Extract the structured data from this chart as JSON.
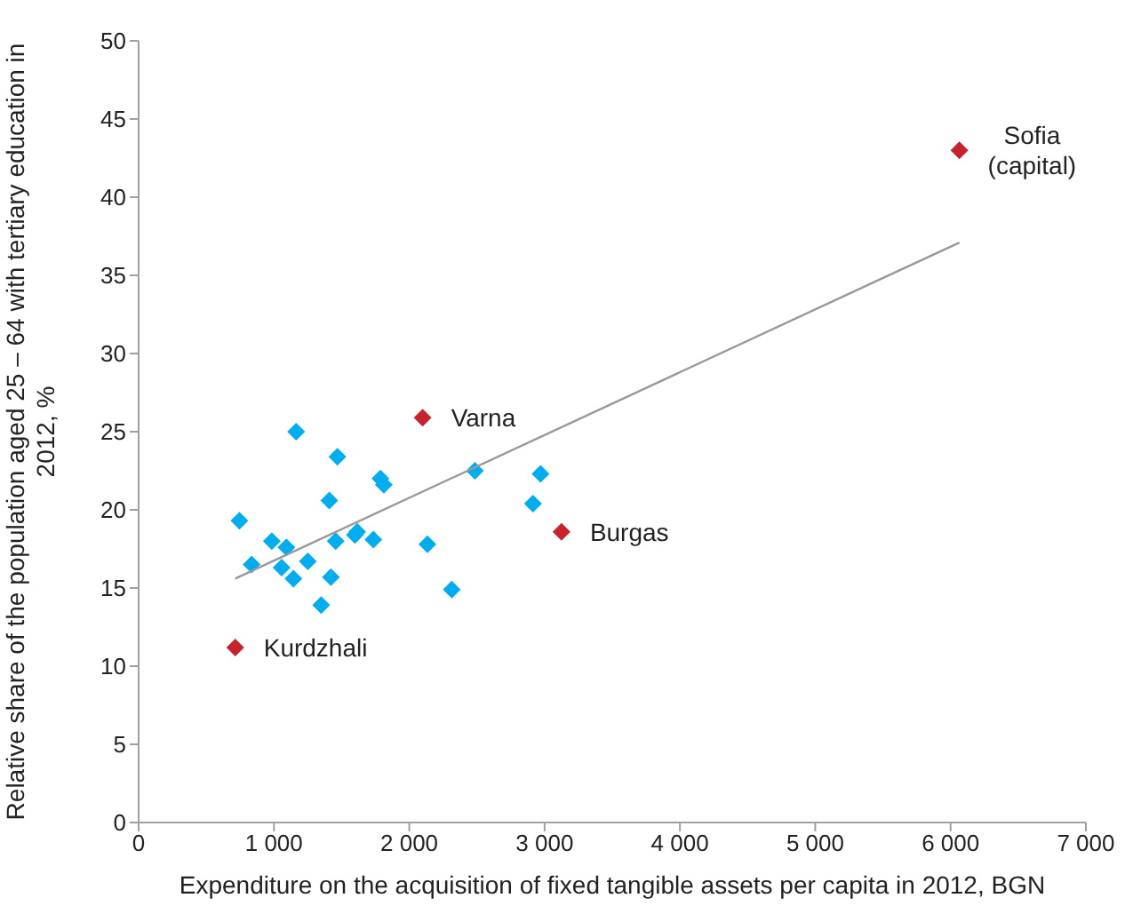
{
  "chart_data": {
    "type": "scatter",
    "xlabel": "Expenditure on the acquisition of fixed tangible assets per capita in 2012, BGN",
    "ylabel": "Relative share of the population aged 25 – 64 with tertiary education in 2012, %",
    "xlim": [
      0,
      7000
    ],
    "xticks": [
      0,
      {
        "value": 1000,
        "label": "1 000"
      },
      {
        "value": 2000,
        "label": "2 000"
      },
      {
        "value": 3000,
        "label": "3 000"
      },
      {
        "value": 4000,
        "label": "4 000"
      },
      {
        "value": 5000,
        "label": "5 000"
      },
      {
        "value": 6000,
        "label": "6 000"
      },
      {
        "value": 7000,
        "label": "7 000"
      }
    ],
    "ylim": [
      0,
      50
    ],
    "yticks": [
      0,
      5,
      10,
      15,
      20,
      25,
      30,
      35,
      40,
      45,
      50
    ],
    "marker": "diamond",
    "series": [
      {
        "color": "#00aeef",
        "x": [
          745,
          835,
          984,
          1092,
          1057,
          1144,
          1164,
          1250,
          1349,
          1409,
          1421,
          1456,
          1469,
          1598,
          1615,
          1735,
          1787,
          1812,
          2134,
          2314,
          2485,
          2914,
          2970
        ],
        "values": [
          19.3,
          16.5,
          18.0,
          17.6,
          16.3,
          15.6,
          25.0,
          16.7,
          13.9,
          20.6,
          15.7,
          18.0,
          23.4,
          18.4,
          18.6,
          18.1,
          22.0,
          21.6,
          17.8,
          14.9,
          22.5,
          20.4,
          22.3
        ]
      },
      {
        "color": "#c8232c",
        "x": [
          714,
          2099,
          3125,
          6065
        ],
        "values": [
          11.2,
          25.9,
          18.6,
          43.0
        ]
      },
      {
        "type": "line",
        "marker": "none",
        "color": "#999999",
        "x": [
          714,
          6065
        ],
        "values": [
          15.6,
          37.1
        ]
      }
    ],
    "annotations": [
      {
        "text": "Kurdzhali",
        "x": 714,
        "y": 11.2
      },
      {
        "text": "Varna",
        "x": 2099,
        "y": 25.9
      },
      {
        "text": "Burgas",
        "x": 3125,
        "y": 18.6
      },
      {
        "text": "Sofia (capital)",
        "x": 6065,
        "y": 43.0
      }
    ]
  }
}
